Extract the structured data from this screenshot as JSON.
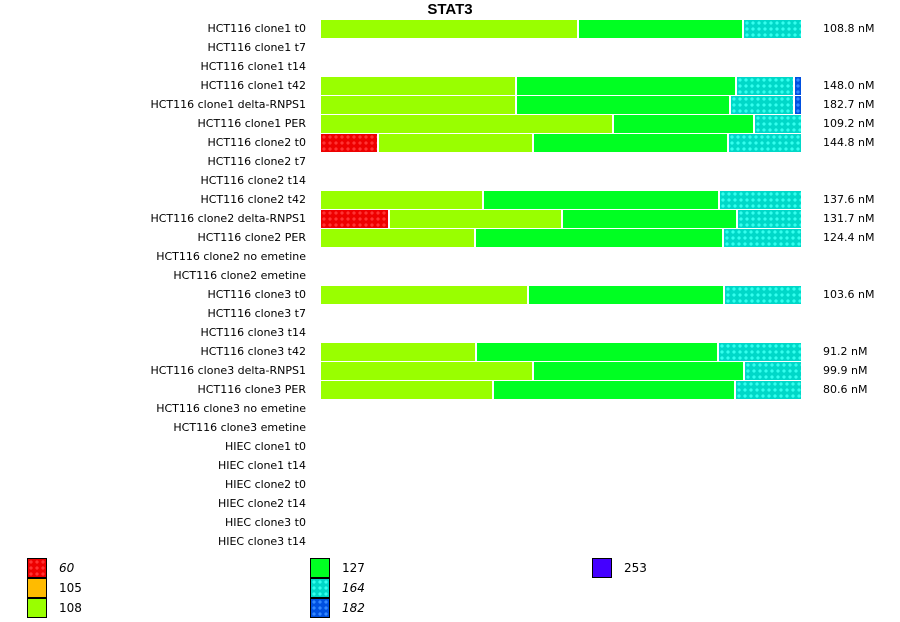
{
  "chart_data": {
    "type": "bar",
    "orientation": "horizontal",
    "stacked": true,
    "normalized": true,
    "title": "STAT3",
    "value_unit": "nM",
    "legend": [
      {
        "key": "60",
        "color": "#ee0000",
        "patterned": true,
        "italic": true
      },
      {
        "key": "105",
        "color": "#ffbb00",
        "patterned": false,
        "italic": false
      },
      {
        "key": "108",
        "color": "#99ff00",
        "patterned": false,
        "italic": false
      },
      {
        "key": "127",
        "color": "#00ff22",
        "patterned": false,
        "italic": false
      },
      {
        "key": "164",
        "color": "#00d8c8",
        "patterned": true,
        "italic": true
      },
      {
        "key": "182",
        "color": "#0050e0",
        "patterned": true,
        "italic": true
      },
      {
        "key": "253",
        "color": "#4400ff",
        "patterned": false,
        "italic": false
      }
    ],
    "legend_placement": "bottom",
    "rows": [
      {
        "label": "HCT116 clone1 t0",
        "total": "108.8 nM",
        "segments": [
          {
            "key": "108",
            "frac": 0.537
          },
          {
            "key": "127",
            "frac": 0.343
          },
          {
            "key": "164",
            "frac": 0.12
          }
        ]
      },
      {
        "label": "HCT116 clone1 t7",
        "total": null,
        "segments": []
      },
      {
        "label": "HCT116 clone1 t14",
        "total": null,
        "segments": []
      },
      {
        "label": "HCT116 clone1 t42",
        "total": "148.0 nM",
        "segments": [
          {
            "key": "108",
            "frac": 0.408
          },
          {
            "key": "127",
            "frac": 0.458
          },
          {
            "key": "164",
            "frac": 0.121
          },
          {
            "key": "182",
            "frac": 0.013
          }
        ]
      },
      {
        "label": "HCT116 clone1 delta-RNPS1",
        "total": "182.7 nM",
        "segments": [
          {
            "key": "108",
            "frac": 0.408
          },
          {
            "key": "127",
            "frac": 0.446
          },
          {
            "key": "164",
            "frac": 0.133
          },
          {
            "key": "182",
            "frac": 0.013
          }
        ]
      },
      {
        "label": "HCT116 clone1 PER",
        "total": "109.2 nM",
        "segments": [
          {
            "key": "108",
            "frac": 0.61
          },
          {
            "key": "127",
            "frac": 0.294
          },
          {
            "key": "164",
            "frac": 0.096
          }
        ]
      },
      {
        "label": "HCT116 clone2 t0",
        "total": "144.8 nM",
        "segments": [
          {
            "key": "60",
            "frac": 0.121
          },
          {
            "key": "108",
            "frac": 0.323
          },
          {
            "key": "127",
            "frac": 0.406
          },
          {
            "key": "164",
            "frac": 0.15
          }
        ]
      },
      {
        "label": "HCT116 clone2 t7",
        "total": null,
        "segments": []
      },
      {
        "label": "HCT116 clone2 t14",
        "total": null,
        "segments": []
      },
      {
        "label": "HCT116 clone2 t42",
        "total": "137.6 nM",
        "segments": [
          {
            "key": "108",
            "frac": 0.34
          },
          {
            "key": "127",
            "frac": 0.492
          },
          {
            "key": "164",
            "frac": 0.168
          }
        ]
      },
      {
        "label": "HCT116 clone2 delta-RNPS1",
        "total": "131.7 nM",
        "segments": [
          {
            "key": "60",
            "frac": 0.144
          },
          {
            "key": "108",
            "frac": 0.36
          },
          {
            "key": "127",
            "frac": 0.365
          },
          {
            "key": "164",
            "frac": 0.131
          }
        ]
      },
      {
        "label": "HCT116 clone2 PER",
        "total": "124.4 nM",
        "segments": [
          {
            "key": "108",
            "frac": 0.323
          },
          {
            "key": "127",
            "frac": 0.517
          },
          {
            "key": "164",
            "frac": 0.16
          }
        ]
      },
      {
        "label": "HCT116 clone2 no emetine",
        "total": null,
        "segments": []
      },
      {
        "label": "HCT116 clone2 emetine",
        "total": null,
        "segments": []
      },
      {
        "label": "HCT116 clone3 t0",
        "total": "103.6 nM",
        "segments": [
          {
            "key": "108",
            "frac": 0.433
          },
          {
            "key": "127",
            "frac": 0.408
          },
          {
            "key": "164",
            "frac": 0.159
          }
        ]
      },
      {
        "label": "HCT116 clone3 t7",
        "total": null,
        "segments": []
      },
      {
        "label": "HCT116 clone3 t14",
        "total": null,
        "segments": []
      },
      {
        "label": "HCT116 clone3 t42",
        "total": "91.2 nM",
        "segments": [
          {
            "key": "108",
            "frac": 0.325
          },
          {
            "key": "127",
            "frac": 0.504
          },
          {
            "key": "164",
            "frac": 0.171
          }
        ]
      },
      {
        "label": "HCT116 clone3 delta-RNPS1",
        "total": "99.9 nM",
        "segments": [
          {
            "key": "108",
            "frac": 0.444
          },
          {
            "key": "127",
            "frac": 0.44
          },
          {
            "key": "164",
            "frac": 0.116
          }
        ]
      },
      {
        "label": "HCT116 clone3 PER",
        "total": "80.6 nM",
        "segments": [
          {
            "key": "108",
            "frac": 0.36
          },
          {
            "key": "127",
            "frac": 0.504
          },
          {
            "key": "164",
            "frac": 0.136
          }
        ]
      },
      {
        "label": "HCT116 clone3 no emetine",
        "total": null,
        "segments": []
      },
      {
        "label": "HCT116 clone3 emetine",
        "total": null,
        "segments": []
      },
      {
        "label": "HIEC clone1 t0",
        "total": null,
        "segments": []
      },
      {
        "label": "HIEC clone1 t14",
        "total": null,
        "segments": []
      },
      {
        "label": "HIEC clone2 t0",
        "total": null,
        "segments": []
      },
      {
        "label": "HIEC clone2 t14",
        "total": null,
        "segments": []
      },
      {
        "label": "HIEC clone3 t0",
        "total": null,
        "segments": []
      },
      {
        "label": "HIEC clone3 t14",
        "total": null,
        "segments": []
      }
    ]
  }
}
